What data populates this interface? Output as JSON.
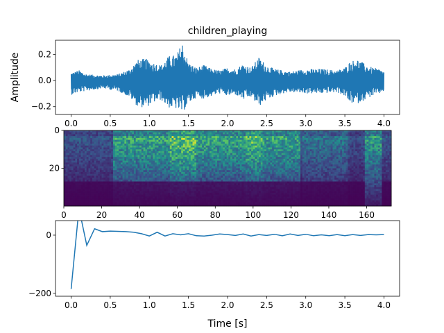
{
  "chart_data": [
    {
      "type": "line",
      "title": "children_playing",
      "xlabel": "",
      "ylabel": "Amplitude",
      "xlim": [
        -0.2,
        4.2
      ],
      "ylim": [
        -0.26,
        0.31
      ],
      "xticks": [
        "0.0",
        "0.5",
        "1.0",
        "1.5",
        "2.0",
        "2.5",
        "3.0",
        "3.5",
        "4.0"
      ],
      "yticks": [
        "−0.2",
        "0.0",
        "0.2"
      ],
      "color": "#1f77b4",
      "envelope": {
        "x": [
          0.0,
          0.1,
          0.2,
          0.4,
          0.6,
          0.75,
          0.85,
          0.95,
          1.05,
          1.15,
          1.25,
          1.35,
          1.42,
          1.5,
          1.6,
          1.7,
          1.8,
          1.9,
          2.0,
          2.1,
          2.2,
          2.3,
          2.4,
          2.5,
          2.6,
          2.7,
          2.8,
          3.0,
          3.2,
          3.4,
          3.5,
          3.55,
          3.65,
          3.75,
          3.85,
          3.95,
          4.0
        ],
        "upper": [
          0.06,
          0.08,
          0.05,
          0.04,
          0.05,
          0.09,
          0.16,
          0.17,
          0.14,
          0.12,
          0.19,
          0.2,
          0.3,
          0.14,
          0.1,
          0.12,
          0.09,
          0.08,
          0.1,
          0.09,
          0.13,
          0.1,
          0.18,
          0.12,
          0.09,
          0.08,
          0.07,
          0.09,
          0.09,
          0.08,
          0.1,
          0.14,
          0.17,
          0.13,
          0.1,
          0.09,
          0.07
        ],
        "lower": [
          -0.11,
          -0.09,
          -0.08,
          -0.06,
          -0.08,
          -0.13,
          -0.2,
          -0.21,
          -0.17,
          -0.15,
          -0.21,
          -0.22,
          -0.25,
          -0.18,
          -0.13,
          -0.14,
          -0.12,
          -0.1,
          -0.12,
          -0.11,
          -0.15,
          -0.13,
          -0.2,
          -0.15,
          -0.12,
          -0.1,
          -0.09,
          -0.1,
          -0.1,
          -0.09,
          -0.12,
          -0.17,
          -0.18,
          -0.15,
          -0.12,
          -0.1,
          -0.08
        ]
      }
    },
    {
      "type": "heatmap",
      "xlim": [
        0,
        173
      ],
      "ylim": [
        40,
        0
      ],
      "xticks": [
        "0",
        "20",
        "40",
        "60",
        "80",
        "100",
        "120",
        "140",
        "160"
      ],
      "yticks": [
        "0",
        "20"
      ],
      "colormap": [
        "#440154",
        "#3b528b",
        "#21918c",
        "#5ec962",
        "#fde725"
      ],
      "rows": 40,
      "cols": 173
    },
    {
      "type": "line",
      "xlabel": "Time [s]",
      "ylabel": "",
      "xlim": [
        -0.2,
        4.2
      ],
      "ylim": [
        -210,
        50
      ],
      "xticks": [
        "0.0",
        "0.5",
        "1.0",
        "1.5",
        "2.0",
        "2.5",
        "3.0",
        "3.5",
        "4.0"
      ],
      "yticks": [
        "−200",
        "0"
      ],
      "color": "#1f77b4",
      "series": [
        {
          "x": [
            0.0,
            0.1,
            0.2,
            0.3,
            0.4,
            0.5,
            0.6,
            0.7,
            0.8,
            0.9,
            1.0,
            1.1,
            1.2,
            1.3,
            1.4,
            1.5,
            1.6,
            1.7,
            1.8,
            1.9,
            2.0,
            2.1,
            2.2,
            2.3,
            2.4,
            2.5,
            2.6,
            2.7,
            2.8,
            2.9,
            3.0,
            3.1,
            3.2,
            3.3,
            3.4,
            3.5,
            3.6,
            3.7,
            3.8,
            3.9,
            4.0
          ],
          "values": [
            -185,
            92,
            -35,
            22,
            12,
            14,
            13,
            12,
            10,
            5,
            -3,
            10,
            -3,
            5,
            1,
            5,
            -2,
            -3,
            0,
            4,
            2,
            -1,
            4,
            -3,
            2,
            -1,
            3,
            -2,
            4,
            -1,
            3,
            -2,
            1,
            -2,
            2,
            -2,
            2,
            -1,
            2,
            1,
            2
          ]
        }
      ]
    }
  ]
}
